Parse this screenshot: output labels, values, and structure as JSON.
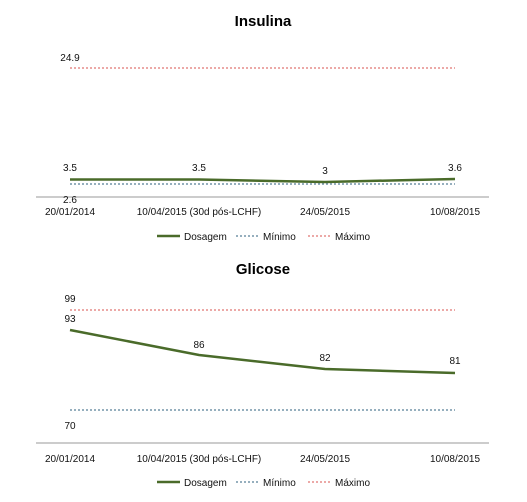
{
  "colors": {
    "dosagem": "#4a6b2a",
    "minimo": "#2e5f7e",
    "maximo": "#d9534f",
    "axis": "#999999"
  },
  "chart_data": [
    {
      "type": "line",
      "title": "Insulina",
      "categories": [
        "20/01/2014",
        "10/04/2015 (30d pós-LCHF)",
        "24/05/2015",
        "10/08/2015"
      ],
      "series": [
        {
          "name": "Dosagem",
          "values": [
            3.5,
            3.5,
            3,
            3.6
          ],
          "style": "solid"
        },
        {
          "name": "Mínimo",
          "values": [
            2.6,
            2.6,
            2.6,
            2.6
          ],
          "style": "dotted"
        },
        {
          "name": "Máximo",
          "values": [
            24.9,
            24.9,
            24.9,
            24.9
          ],
          "style": "dotted"
        }
      ],
      "ylim": [
        0,
        30
      ],
      "legend": "bottom"
    },
    {
      "type": "line",
      "title": "Glicose",
      "categories": [
        "20/01/2014",
        "10/04/2015 (30d pós-LCHF)",
        "24/05/2015",
        "10/08/2015"
      ],
      "series": [
        {
          "name": "Dosagem",
          "values": [
            93,
            86,
            82,
            81
          ],
          "style": "solid"
        },
        {
          "name": "Mínimo",
          "values": [
            70,
            70,
            70,
            70
          ],
          "style": "dotted"
        },
        {
          "name": "Máximo",
          "values": [
            99,
            99,
            99,
            99
          ],
          "style": "dotted"
        }
      ],
      "ylim": [
        60,
        103
      ],
      "legend": "bottom"
    }
  ]
}
